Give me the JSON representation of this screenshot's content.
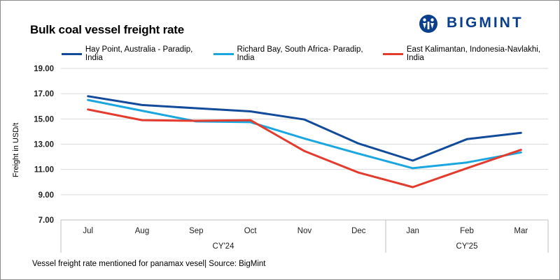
{
  "title": "Bulk coal vessel freight rate",
  "logo": {
    "text": "BIGMINT",
    "icon": "bigmint-logo-icon"
  },
  "footer": "Vessel freight rate mentioned for panamax vesel| Source: BigMint",
  "colors": {
    "hay_point": "#114b9a",
    "richard_bay": "#1aa7e0",
    "east_kalimantan": "#e33b2e",
    "grid": "#d9d9d9",
    "logo": "#0a3f8c"
  },
  "chart_data": {
    "type": "line",
    "title": "Bulk coal vessel freight rate",
    "ylabel": "Freight in USD/t",
    "xlabel": "",
    "ylim": [
      7,
      19
    ],
    "yticks": [
      "7.00",
      "9.00",
      "11.00",
      "13.00",
      "15.00",
      "17.00",
      "19.00"
    ],
    "categories": [
      "Jul",
      "Aug",
      "Sep",
      "Oct",
      "Nov",
      "Dec",
      "Jan",
      "Feb",
      "Mar"
    ],
    "groups": [
      {
        "label": "CY'24",
        "start": 0,
        "end": 5
      },
      {
        "label": "CY'25",
        "start": 6,
        "end": 8
      }
    ],
    "grid": true,
    "legend": "top",
    "series": [
      {
        "name": "Hay Point, Australia - Paradip, India",
        "color": "#114b9a",
        "values": [
          16.8,
          16.1,
          15.85,
          15.6,
          14.95,
          13.05,
          11.7,
          13.4,
          13.9
        ]
      },
      {
        "name": "Richard Bay, South Africa- Paradip, India",
        "color": "#1aa7e0",
        "values": [
          16.5,
          15.65,
          14.8,
          14.75,
          13.45,
          12.25,
          11.1,
          11.55,
          12.35
        ]
      },
      {
        "name": "East Kalimantan, Indonesia-Navlakhi, India",
        "color": "#e33b2e",
        "values": [
          15.75,
          14.9,
          14.85,
          14.9,
          12.45,
          10.75,
          9.6,
          11.1,
          12.55
        ]
      }
    ]
  }
}
